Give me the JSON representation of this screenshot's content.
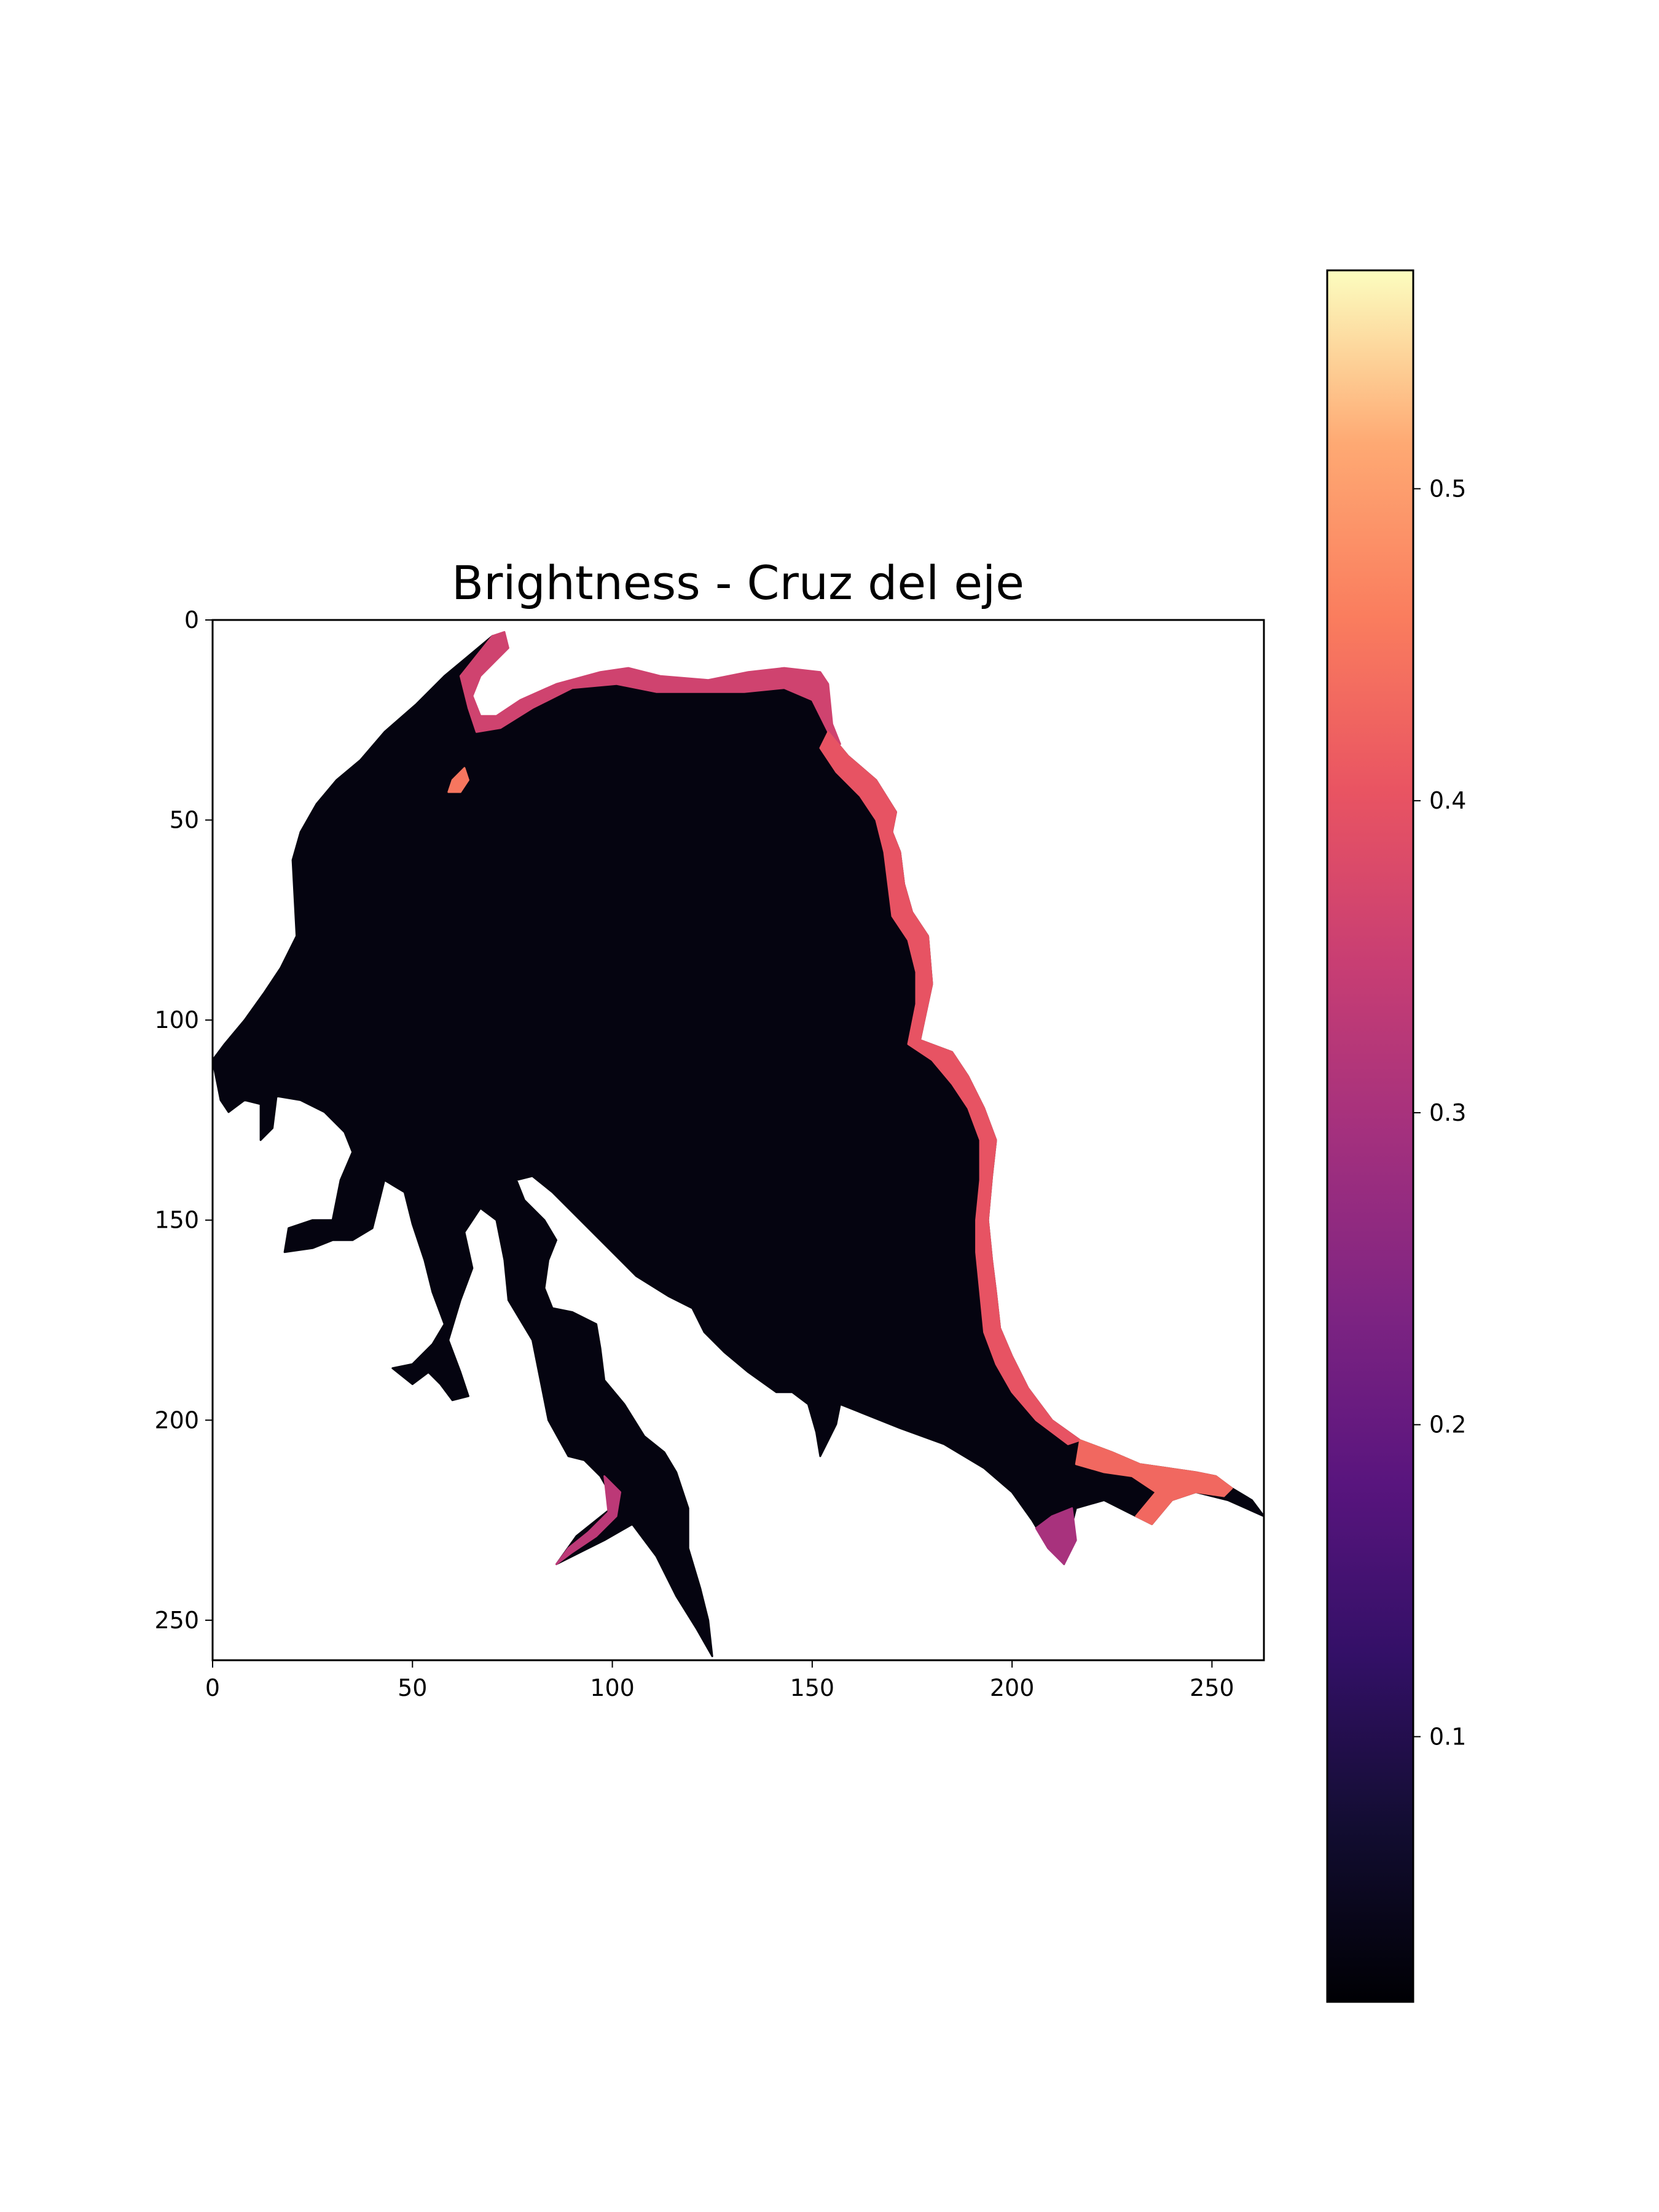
{
  "chart_data": {
    "type": "heatmap",
    "title": "Brightness - Cruz del eje",
    "xlabel": "",
    "ylabel": "",
    "colormap": "magma",
    "xlim": [
      0,
      263
    ],
    "ylim": [
      260,
      0
    ],
    "x_ticks": [
      0,
      50,
      100,
      150,
      200,
      250
    ],
    "y_ticks": [
      0,
      50,
      100,
      150,
      200,
      250
    ],
    "colorbar": {
      "range": [
        0.015,
        0.57
      ],
      "ticks": [
        0.1,
        0.2,
        0.3,
        0.4,
        0.5
      ],
      "tick_labels": [
        "0.1",
        "0.2",
        "0.3",
        "0.4",
        "0.5"
      ],
      "location": "right"
    },
    "regions": [
      {
        "name": "lake-body",
        "value": 0.03,
        "outline": [
          [
            0,
            110
          ],
          [
            3,
            106
          ],
          [
            8,
            100
          ],
          [
            13,
            93
          ],
          [
            17,
            87
          ],
          [
            21,
            79
          ],
          [
            20,
            60
          ],
          [
            22,
            53
          ],
          [
            26,
            46
          ],
          [
            31,
            40
          ],
          [
            37,
            35
          ],
          [
            43,
            28
          ],
          [
            51,
            21
          ],
          [
            58,
            14
          ],
          [
            64,
            9
          ],
          [
            70,
            4
          ],
          [
            71,
            8
          ],
          [
            66,
            13
          ],
          [
            64,
            19
          ],
          [
            67,
            26
          ],
          [
            72,
            25
          ],
          [
            79,
            20
          ],
          [
            90,
            15
          ],
          [
            103,
            13
          ],
          [
            112,
            15
          ],
          [
            127,
            16
          ],
          [
            136,
            14
          ],
          [
            143,
            13
          ],
          [
            150,
            13
          ],
          [
            153,
            15
          ],
          [
            154,
            28
          ],
          [
            159,
            34
          ],
          [
            166,
            40
          ],
          [
            171,
            48
          ],
          [
            170,
            53
          ],
          [
            172,
            58
          ],
          [
            173,
            66
          ],
          [
            175,
            73
          ],
          [
            179,
            79
          ],
          [
            180,
            91
          ],
          [
            177,
            105
          ],
          [
            185,
            108
          ],
          [
            189,
            114
          ],
          [
            193,
            122
          ],
          [
            196,
            130
          ],
          [
            195,
            139
          ],
          [
            194,
            150
          ],
          [
            195,
            160
          ],
          [
            196,
            168
          ],
          [
            197,
            177
          ],
          [
            200,
            184
          ],
          [
            204,
            192
          ],
          [
            210,
            200
          ],
          [
            217,
            205
          ],
          [
            225,
            208
          ],
          [
            232,
            211
          ],
          [
            239,
            212
          ],
          [
            246,
            213
          ],
          [
            251,
            214
          ],
          [
            255,
            217
          ],
          [
            260,
            220
          ],
          [
            263,
            224
          ],
          [
            254,
            220
          ],
          [
            246,
            218
          ],
          [
            240,
            220
          ],
          [
            235,
            226
          ],
          [
            229,
            223
          ],
          [
            223,
            220
          ],
          [
            216,
            222
          ],
          [
            214,
            230
          ],
          [
            213,
            236
          ],
          [
            208,
            230
          ],
          [
            205,
            225
          ],
          [
            200,
            218
          ],
          [
            193,
            212
          ],
          [
            183,
            206
          ],
          [
            172,
            202
          ],
          [
            162,
            198
          ],
          [
            157,
            196
          ],
          [
            156,
            201
          ],
          [
            154,
            205
          ],
          [
            152,
            209
          ],
          [
            151,
            203
          ],
          [
            149,
            196
          ],
          [
            145,
            193
          ],
          [
            141,
            193
          ],
          [
            134,
            188
          ],
          [
            128,
            183
          ],
          [
            123,
            178
          ],
          [
            120,
            172
          ],
          [
            114,
            169
          ],
          [
            106,
            164
          ],
          [
            99,
            157
          ],
          [
            92,
            150
          ],
          [
            88,
            146
          ],
          [
            85,
            143
          ],
          [
            80,
            139
          ],
          [
            76,
            140
          ],
          [
            78,
            145
          ],
          [
            83,
            150
          ],
          [
            86,
            155
          ],
          [
            84,
            160
          ],
          [
            83,
            167
          ],
          [
            85,
            172
          ],
          [
            90,
            173
          ],
          [
            96,
            176
          ],
          [
            97,
            182
          ],
          [
            98,
            190
          ],
          [
            103,
            196
          ],
          [
            108,
            204
          ],
          [
            113,
            208
          ],
          [
            116,
            213
          ],
          [
            119,
            222
          ],
          [
            119,
            232
          ],
          [
            122,
            242
          ],
          [
            124,
            250
          ],
          [
            125,
            259
          ],
          [
            121,
            252
          ],
          [
            116,
            244
          ],
          [
            111,
            234
          ],
          [
            105,
            226
          ],
          [
            98,
            230
          ],
          [
            92,
            233
          ],
          [
            86,
            236
          ],
          [
            91,
            229
          ],
          [
            96,
            225
          ],
          [
            101,
            221
          ],
          [
            97,
            214
          ],
          [
            93,
            210
          ],
          [
            89,
            209
          ],
          [
            84,
            200
          ],
          [
            82,
            190
          ],
          [
            80,
            180
          ],
          [
            74,
            170
          ],
          [
            73,
            160
          ],
          [
            71,
            150
          ],
          [
            67,
            147
          ],
          [
            63,
            153
          ],
          [
            65,
            162
          ],
          [
            62,
            170
          ],
          [
            59,
            180
          ],
          [
            62,
            188
          ],
          [
            64,
            194
          ],
          [
            60,
            195
          ],
          [
            57,
            191
          ],
          [
            54,
            188
          ],
          [
            50,
            191
          ],
          [
            45,
            187
          ],
          [
            50,
            186
          ],
          [
            55,
            181
          ],
          [
            58,
            176
          ],
          [
            55,
            168
          ],
          [
            53,
            160
          ],
          [
            50,
            151
          ],
          [
            48,
            143
          ],
          [
            43,
            140
          ],
          [
            40,
            152
          ],
          [
            35,
            155
          ],
          [
            30,
            155
          ],
          [
            25,
            157
          ],
          [
            18,
            158
          ],
          [
            19,
            152
          ],
          [
            25,
            150
          ],
          [
            30,
            150
          ],
          [
            32,
            140
          ],
          [
            35,
            133
          ],
          [
            33,
            128
          ],
          [
            28,
            123
          ],
          [
            22,
            120
          ],
          [
            16,
            119
          ],
          [
            15,
            127
          ],
          [
            12,
            130
          ],
          [
            12,
            121
          ],
          [
            8,
            120
          ],
          [
            4,
            123
          ],
          [
            2,
            120
          ]
        ]
      },
      {
        "name": "shore-highlight-north",
        "value": 0.36,
        "outline": [
          [
            62,
            14
          ],
          [
            66,
            9
          ],
          [
            70,
            4
          ],
          [
            73,
            3
          ],
          [
            74,
            7
          ],
          [
            71,
            10
          ],
          [
            67,
            14
          ],
          [
            65,
            19
          ],
          [
            67,
            24
          ],
          [
            71,
            24
          ],
          [
            77,
            20
          ],
          [
            86,
            16
          ],
          [
            97,
            13
          ],
          [
            104,
            12
          ],
          [
            112,
            14
          ],
          [
            124,
            15
          ],
          [
            134,
            13
          ],
          [
            143,
            12
          ],
          [
            152,
            13
          ],
          [
            154,
            16
          ],
          [
            155,
            26
          ],
          [
            157,
            31
          ],
          [
            154,
            28
          ],
          [
            150,
            20
          ],
          [
            143,
            17
          ],
          [
            133,
            18
          ],
          [
            122,
            18
          ],
          [
            111,
            18
          ],
          [
            101,
            16
          ],
          [
            90,
            17
          ],
          [
            80,
            22
          ],
          [
            72,
            27
          ],
          [
            66,
            28
          ],
          [
            64,
            22
          ]
        ]
      },
      {
        "name": "shore-highlight-east",
        "value": 0.4,
        "outline": [
          [
            154,
            28
          ],
          [
            159,
            34
          ],
          [
            166,
            40
          ],
          [
            171,
            48
          ],
          [
            170,
            53
          ],
          [
            172,
            58
          ],
          [
            173,
            66
          ],
          [
            175,
            73
          ],
          [
            179,
            79
          ],
          [
            180,
            91
          ],
          [
            177,
            105
          ],
          [
            185,
            108
          ],
          [
            189,
            114
          ],
          [
            193,
            122
          ],
          [
            196,
            130
          ],
          [
            195,
            139
          ],
          [
            194,
            150
          ],
          [
            195,
            160
          ],
          [
            196,
            168
          ],
          [
            197,
            177
          ],
          [
            200,
            184
          ],
          [
            204,
            192
          ],
          [
            210,
            200
          ],
          [
            217,
            205
          ],
          [
            214,
            206
          ],
          [
            206,
            200
          ],
          [
            200,
            193
          ],
          [
            196,
            186
          ],
          [
            193,
            178
          ],
          [
            192,
            168
          ],
          [
            191,
            158
          ],
          [
            191,
            150
          ],
          [
            192,
            140
          ],
          [
            192,
            130
          ],
          [
            189,
            122
          ],
          [
            185,
            116
          ],
          [
            180,
            110
          ],
          [
            174,
            106
          ],
          [
            176,
            96
          ],
          [
            176,
            88
          ],
          [
            174,
            80
          ],
          [
            170,
            74
          ],
          [
            169,
            66
          ],
          [
            168,
            58
          ],
          [
            166,
            50
          ],
          [
            162,
            44
          ],
          [
            156,
            38
          ],
          [
            152,
            32
          ]
        ]
      },
      {
        "name": "shore-highlight-southeast",
        "value": 0.43,
        "outline": [
          [
            217,
            205
          ],
          [
            225,
            208
          ],
          [
            232,
            211
          ],
          [
            239,
            212
          ],
          [
            246,
            213
          ],
          [
            251,
            214
          ],
          [
            255,
            217
          ],
          [
            253,
            219
          ],
          [
            246,
            218
          ],
          [
            240,
            220
          ],
          [
            235,
            226
          ],
          [
            231,
            224
          ],
          [
            236,
            218
          ],
          [
            230,
            214
          ],
          [
            223,
            213
          ],
          [
            216,
            211
          ]
        ]
      },
      {
        "name": "shore-highlight-south-arm",
        "value": 0.33,
        "outline": [
          [
            98,
            214
          ],
          [
            102,
            218
          ],
          [
            101,
            224
          ],
          [
            96,
            229
          ],
          [
            90,
            233
          ],
          [
            86,
            236
          ],
          [
            89,
            232
          ],
          [
            94,
            228
          ],
          [
            99,
            223
          ]
        ]
      },
      {
        "name": "shore-highlight-bay",
        "value": 0.3,
        "outline": [
          [
            210,
            224
          ],
          [
            215,
            222
          ],
          [
            216,
            230
          ],
          [
            213,
            236
          ],
          [
            209,
            232
          ],
          [
            206,
            227
          ]
        ]
      },
      {
        "name": "inner-spot",
        "value": 0.45,
        "outline": [
          [
            60,
            40
          ],
          [
            63,
            37
          ],
          [
            64,
            40
          ],
          [
            62,
            43
          ],
          [
            59,
            43
          ]
        ]
      }
    ]
  }
}
